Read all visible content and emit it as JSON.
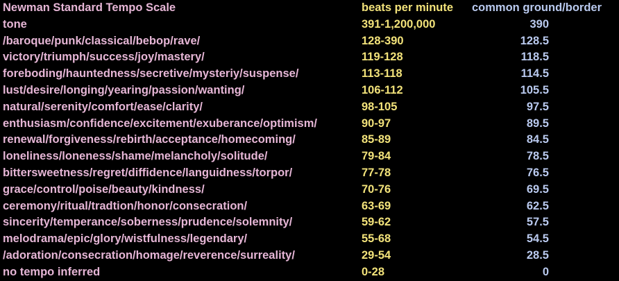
{
  "colors": {
    "tone": "#e6b6d6",
    "bpm": "#f2e27a",
    "border": "#b9c9ee",
    "background": "#000000"
  },
  "header": {
    "title": "Newman Standard Tempo Scale",
    "bpm": "beats per minute",
    "border": "common ground/border"
  },
  "rows": [
    {
      "tone": "tone",
      "bpm": "391-1,200,000",
      "border": "390"
    },
    {
      "tone": "/baroque/punk/classical/bebop/rave/",
      "bpm": "128-390",
      "border": "128.5"
    },
    {
      "tone": "victory/triumph/success/joy/mastery/",
      "bpm": "119-128",
      "border": "118.5"
    },
    {
      "tone": "foreboding/hauntedness/secretive/mysteriy/suspense/",
      "bpm": "113-118",
      "border": "114.5"
    },
    {
      "tone": "lust/desire/longing/yearing/passion/wanting/",
      "bpm": "106-112",
      "border": "105.5"
    },
    {
      "tone": "natural/serenity/comfort/ease/clarity/",
      "bpm": "98-105",
      "border": "97.5"
    },
    {
      "tone": "enthusiasm/confidence/excitement/exuberance/optimism/",
      "bpm": "90-97",
      "border": "89.5"
    },
    {
      "tone": "renewal/forgiveness/rebirth/acceptance/homecoming/",
      "bpm": "85-89",
      "border": "84.5"
    },
    {
      "tone": "loneliness/loneness/shame/melancholy/solitude/",
      "bpm": "79-84",
      "border": "78.5"
    },
    {
      "tone": "bittersweetness/regret/diffidence/languidness/torpor/",
      "bpm": "77-78",
      "border": "76.5"
    },
    {
      "tone": "grace/control/poise/beauty/kindness/",
      "bpm": "70-76",
      "border": "69.5"
    },
    {
      "tone": "ceremony/ritual/tradtion/honor/consecration/",
      "bpm": "63-69",
      "border": "62.5"
    },
    {
      "tone": "sincerity/temperance/soberness/prudence/solemnity/",
      "bpm": "59-62",
      "border": "57.5"
    },
    {
      "tone": "melodrama/epic/glory/wistfulness/legendary/",
      "bpm": "55-68",
      "border": "54.5"
    },
    {
      "tone": "/adoration/consecration/homage/reverence/surreality/",
      "bpm": "29-54",
      "border": "28.5"
    },
    {
      "tone": "no tempo inferred",
      "bpm": "0-28",
      "border": "0"
    }
  ]
}
